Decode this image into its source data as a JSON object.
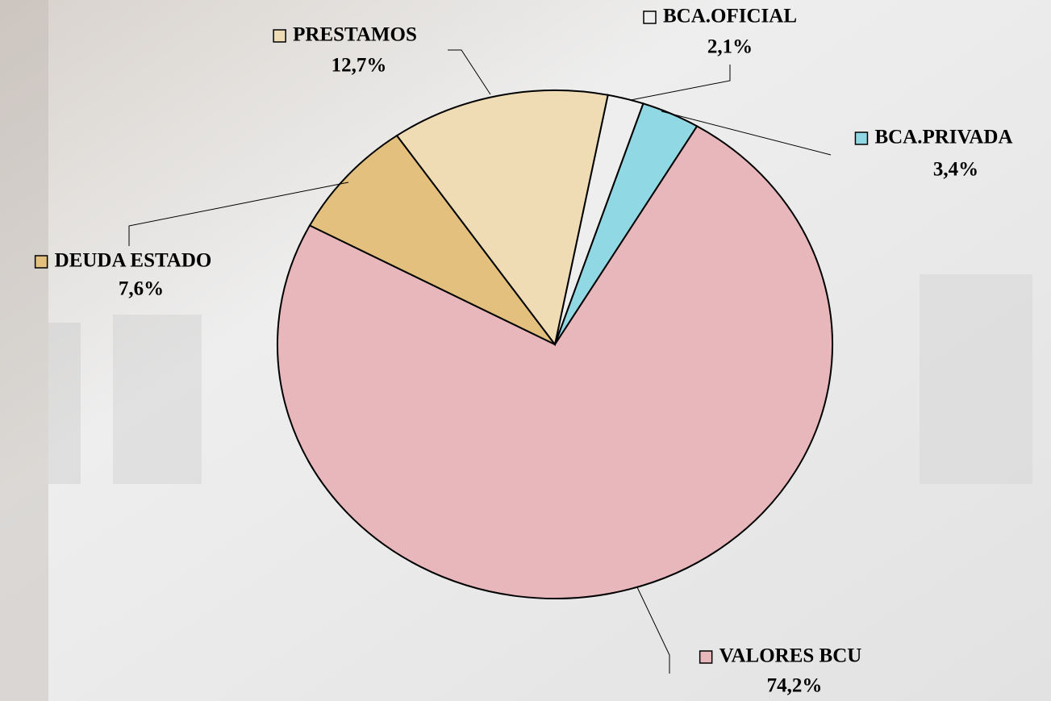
{
  "chart_data": {
    "type": "pie",
    "categories": [
      "BCA.OFICIAL",
      "BCA.PRIVADA",
      "VALORES BCU",
      "DEUDA ESTADO",
      "PRESTAMOS"
    ],
    "values": [
      2.1,
      3.4,
      74.2,
      7.6,
      12.7
    ],
    "value_labels": [
      "2,1%",
      "3,4%",
      "74,2%",
      "7,6%",
      "12,7%"
    ],
    "colors": [
      "#eeeeee",
      "#8fd8e4",
      "#e8b7bb",
      "#e4c07e",
      "#efdcb4"
    ]
  }
}
